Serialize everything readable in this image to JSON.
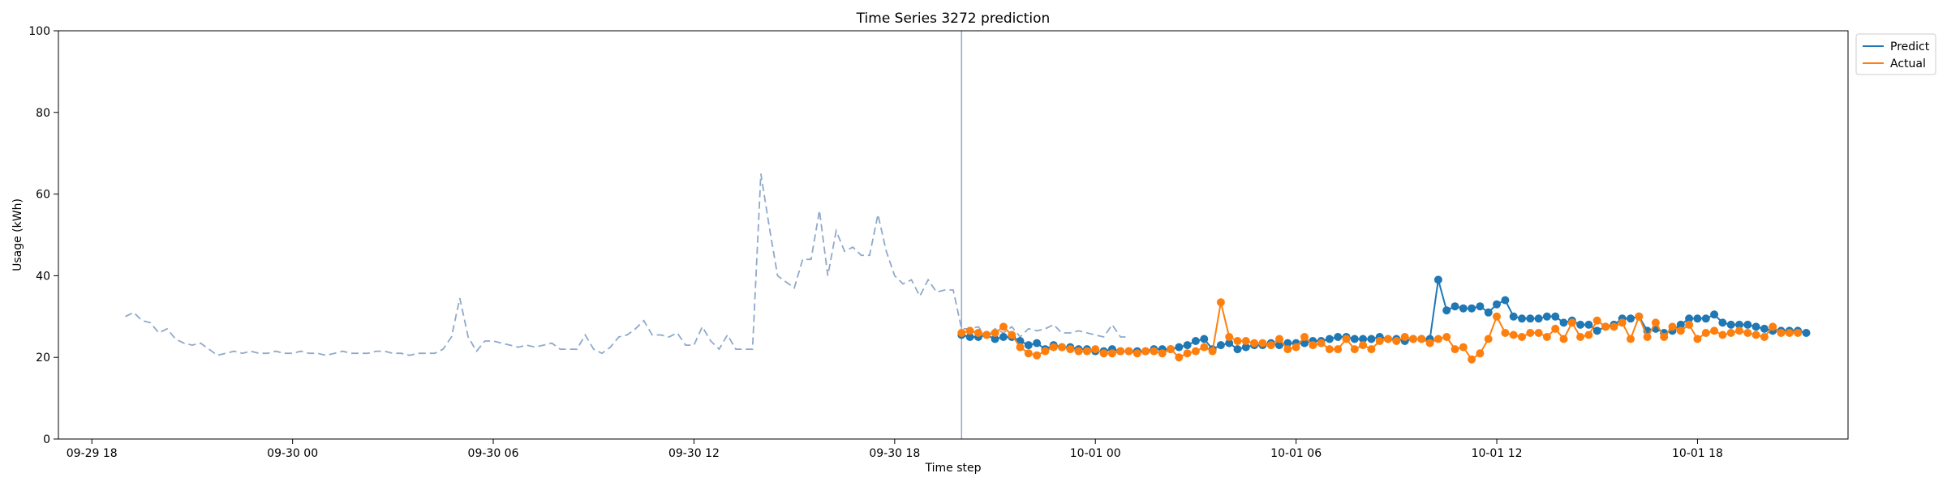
{
  "chart_data": {
    "type": "line",
    "title": "Time Series 3272 prediction",
    "xlabel": "Time step",
    "ylabel": "Usage (kWh)",
    "ylim": [
      0,
      100
    ],
    "yticks": [
      0,
      20,
      40,
      60,
      80,
      100
    ],
    "xlim": [
      "2024-09-29T17:00",
      "2024-10-01T22:30"
    ],
    "xticks": [
      {
        "t": "2024-09-29T18:00",
        "label": "09-29 18"
      },
      {
        "t": "2024-09-30T00:00",
        "label": "09-30 00"
      },
      {
        "t": "2024-09-30T06:00",
        "label": "09-30 06"
      },
      {
        "t": "2024-09-30T12:00",
        "label": "09-30 12"
      },
      {
        "t": "2024-09-30T18:00",
        "label": "09-30 18"
      },
      {
        "t": "2024-10-01T00:00",
        "label": "10-01 00"
      },
      {
        "t": "2024-10-01T06:00",
        "label": "10-01 06"
      },
      {
        "t": "2024-10-01T12:00",
        "label": "10-01 12"
      },
      {
        "t": "2024-10-01T18:00",
        "label": "10-01 18"
      }
    ],
    "legend_position": "outside top-right",
    "grid": false,
    "forecast_start": "2024-09-30T20:00",
    "history": {
      "style": "dashed",
      "color": "#8fa9cc",
      "start": "2024-09-29T19:00",
      "step_minutes": 15,
      "values": [
        30,
        31,
        29,
        28.5,
        26,
        27,
        24.5,
        23.5,
        23,
        23.5,
        22,
        20.5,
        21,
        21.5,
        21,
        21.5,
        21,
        21,
        21.5,
        21,
        21,
        21.5,
        21,
        21,
        20.5,
        21,
        21.5,
        21,
        21,
        21,
        21.5,
        21.5,
        21,
        21,
        20.5,
        21,
        21,
        21,
        22,
        25,
        34.5,
        25,
        21.5,
        24,
        24,
        23.5,
        23,
        22.5,
        23,
        22.5,
        23,
        23.5,
        22,
        22,
        22,
        25.5,
        22,
        21,
        22.5,
        25,
        25.5,
        27,
        29,
        25.5,
        25.5,
        25,
        26,
        23,
        23,
        27.5,
        24,
        22,
        25.5,
        22,
        22,
        22,
        65,
        52,
        40,
        38.5,
        37,
        44,
        44,
        56,
        40,
        51,
        46,
        47,
        45,
        45,
        55,
        46,
        40,
        38,
        39,
        35,
        39,
        36,
        36.5,
        36.5,
        27,
        27,
        27.5,
        25,
        27,
        26,
        27.5,
        25,
        27,
        26.5,
        27,
        28,
        26,
        26,
        26.5,
        26,
        25.5,
        25,
        28,
        25,
        25
      ]
    },
    "series": [
      {
        "name": "Predict",
        "color": "#1f77b4",
        "start": "2024-09-30T20:00",
        "step_minutes": 15,
        "values": [
          25.5,
          25,
          25,
          25.5,
          24.5,
          25,
          25,
          24,
          23,
          23.5,
          22,
          23,
          22.5,
          22.5,
          22,
          22,
          21.5,
          21.5,
          22,
          21.5,
          21.5,
          21.5,
          21.5,
          22,
          22,
          22,
          22.5,
          23,
          24,
          24.5,
          22,
          23,
          23.5,
          22,
          22.5,
          23,
          23,
          23.5,
          23,
          23.5,
          23.5,
          23.5,
          24,
          24,
          24.5,
          25,
          25,
          24.5,
          24.5,
          24.5,
          25,
          24.5,
          24.5,
          24,
          24.5,
          24.5,
          24.5,
          39,
          31.5,
          32.5,
          32,
          32,
          32.5,
          31,
          33,
          34,
          30,
          29.5,
          29.5,
          29.5,
          30,
          30,
          28.5,
          29,
          28,
          28,
          26.5,
          27.5,
          28,
          29.5,
          29.5,
          30,
          26.5,
          27,
          26,
          26.5,
          28,
          29.5,
          29.5,
          29.5,
          30.5,
          28.5,
          28,
          28,
          28,
          27.5,
          27,
          26.5,
          26.5,
          26.5,
          26.5,
          26
        ]
      },
      {
        "name": "Actual",
        "color": "#ff7f0e",
        "start": "2024-09-30T20:00",
        "step_minutes": 15,
        "values": [
          26,
          26.5,
          26,
          25.5,
          26,
          27.5,
          25.5,
          22.5,
          21,
          20.5,
          21.5,
          22.5,
          22.5,
          22,
          21.5,
          21.5,
          22,
          21,
          21,
          21.5,
          21.5,
          21,
          21.5,
          21.5,
          21,
          22,
          20,
          21,
          21.5,
          22.5,
          21.5,
          33.5,
          25,
          24,
          24,
          23.5,
          23.5,
          23,
          24.5,
          22,
          22.5,
          25,
          23,
          23.5,
          22,
          22,
          24.5,
          22,
          23,
          22,
          24,
          24.5,
          24,
          25,
          24.5,
          24.5,
          23.5,
          24.5,
          25,
          22,
          22.5,
          19.5,
          21,
          24.5,
          30,
          26,
          25.5,
          25,
          26,
          26,
          25,
          27,
          24.5,
          28.5,
          25,
          25.5,
          29,
          27.5,
          27.5,
          28.5,
          24.5,
          30,
          25,
          28.5,
          25,
          27.5,
          26.5,
          28,
          24.5,
          26,
          26.5,
          25.5,
          26,
          26.5,
          26,
          25.5,
          25,
          27.5,
          26,
          26,
          26
        ]
      }
    ]
  }
}
